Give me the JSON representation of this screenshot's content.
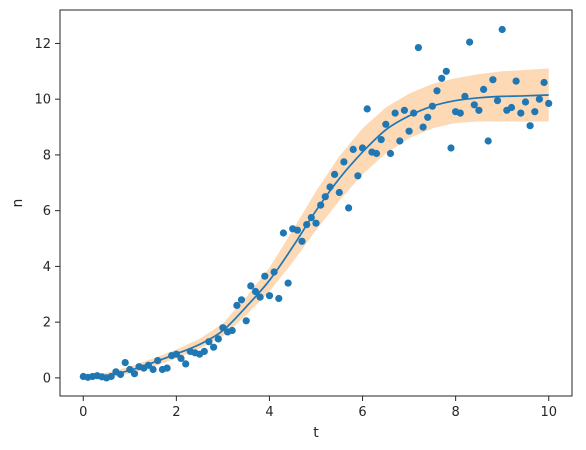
{
  "chart_data": {
    "type": "scatter",
    "xlabel": "t",
    "ylabel": "n",
    "xlim": [
      -0.5,
      10.5
    ],
    "ylim": [
      -0.65,
      13.2
    ],
    "xticks": [
      0,
      2,
      4,
      6,
      8,
      10
    ],
    "yticks": [
      0,
      2,
      4,
      6,
      8,
      10,
      12
    ],
    "grid": false,
    "colors": {
      "points": "#1f77b4",
      "line": "#1f77b4",
      "band": "#fdd9b5",
      "axes": "#262626"
    },
    "series": [
      {
        "type": "scatter",
        "x": [
          0.0,
          0.1,
          0.2,
          0.3,
          0.4,
          0.5,
          0.6,
          0.7,
          0.8,
          0.9,
          1.0,
          1.1,
          1.2,
          1.3,
          1.4,
          1.5,
          1.6,
          1.7,
          1.8,
          1.9,
          2.0,
          2.1,
          2.2,
          2.3,
          2.4,
          2.5,
          2.6,
          2.7,
          2.8,
          2.9,
          3.0,
          3.1,
          3.2,
          3.3,
          3.4,
          3.5,
          3.6,
          3.7,
          3.8,
          3.9,
          4.0,
          4.1,
          4.2,
          4.3,
          4.4,
          4.5,
          4.6,
          4.7,
          4.8,
          4.9,
          5.0,
          5.1,
          5.2,
          5.3,
          5.4,
          5.5,
          5.6,
          5.7,
          5.8,
          5.9,
          6.0,
          6.1,
          6.2,
          6.3,
          6.4,
          6.5,
          6.6,
          6.7,
          6.8,
          6.9,
          7.0,
          7.1,
          7.2,
          7.3,
          7.4,
          7.5,
          7.6,
          7.7,
          7.8,
          7.9,
          8.0,
          8.1,
          8.2,
          8.3,
          8.4,
          8.5,
          8.6,
          8.7,
          8.8,
          8.9,
          9.0,
          9.1,
          9.2,
          9.3,
          9.4,
          9.5,
          9.6,
          9.7,
          9.8,
          9.9,
          10.0
        ],
        "y": [
          0.05,
          0.02,
          0.05,
          0.08,
          0.04,
          0.0,
          0.05,
          0.22,
          0.12,
          0.55,
          0.3,
          0.15,
          0.4,
          0.35,
          0.45,
          0.3,
          0.62,
          0.3,
          0.35,
          0.8,
          0.85,
          0.7,
          0.5,
          0.95,
          0.9,
          0.85,
          0.95,
          1.3,
          1.1,
          1.4,
          1.8,
          1.65,
          1.7,
          2.6,
          2.8,
          2.05,
          3.3,
          3.1,
          2.9,
          3.65,
          2.95,
          3.8,
          2.85,
          5.2,
          3.4,
          5.35,
          5.3,
          4.9,
          5.5,
          5.75,
          5.55,
          6.2,
          6.5,
          6.85,
          7.3,
          6.65,
          7.75,
          6.1,
          8.2,
          7.25,
          8.25,
          9.65,
          8.1,
          8.05,
          8.55,
          9.1,
          8.05,
          9.5,
          8.5,
          9.6,
          8.85,
          9.5,
          11.85,
          9.0,
          9.35,
          9.75,
          10.3,
          10.75,
          11.0,
          8.25,
          9.55,
          9.5,
          10.1,
          12.05,
          9.8,
          9.6,
          10.35,
          8.5,
          10.7,
          9.95,
          12.5,
          9.6,
          9.7,
          10.65,
          9.5,
          9.9,
          9.05,
          9.55,
          10.0,
          10.6,
          9.85
        ]
      },
      {
        "type": "line",
        "x": [
          0,
          0.5,
          1,
          1.5,
          2,
          2.5,
          3,
          3.5,
          4,
          4.5,
          5,
          5.5,
          6,
          6.5,
          7,
          7.5,
          8,
          8.5,
          9,
          9.5,
          10
        ],
        "y": [
          0.0,
          0.08,
          0.27,
          0.55,
          0.86,
          1.2,
          1.7,
          2.55,
          3.5,
          4.7,
          6.0,
          7.15,
          8.1,
          8.9,
          9.4,
          9.75,
          9.95,
          10.05,
          10.1,
          10.12,
          10.15
        ],
        "band_lower": [
          -0.05,
          0.0,
          0.15,
          0.4,
          0.7,
          1.05,
          1.5,
          2.25,
          3.1,
          4.15,
          5.3,
          6.35,
          7.3,
          8.05,
          8.6,
          8.95,
          9.15,
          9.2,
          9.2,
          9.2,
          9.2
        ],
        "band_upper": [
          0.1,
          0.18,
          0.4,
          0.7,
          1.02,
          1.4,
          1.95,
          2.9,
          3.95,
          5.3,
          6.7,
          7.95,
          8.95,
          9.7,
          10.2,
          10.55,
          10.75,
          10.9,
          11.0,
          11.05,
          11.1
        ]
      }
    ]
  }
}
